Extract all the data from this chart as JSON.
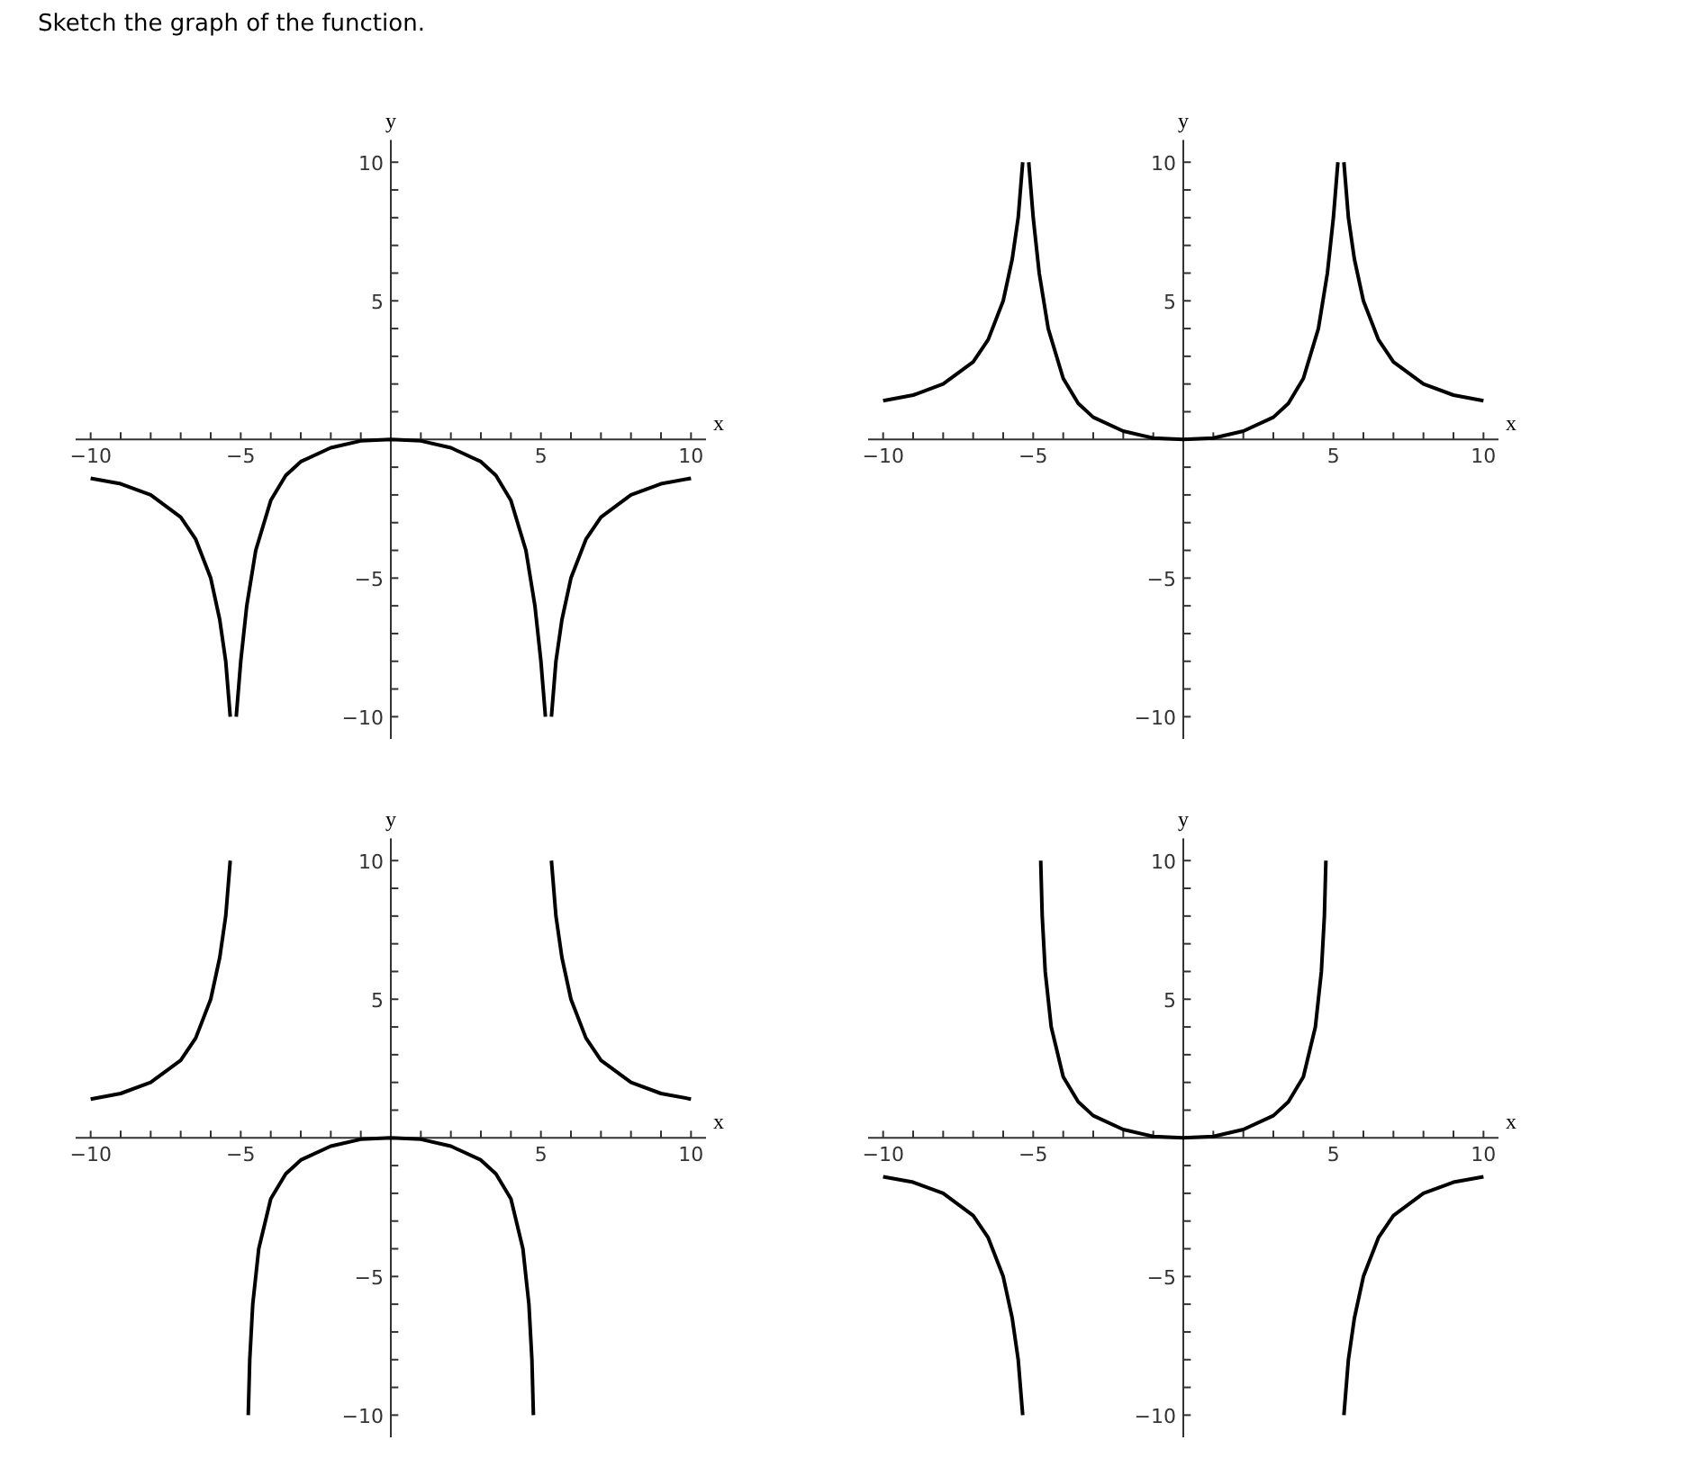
{
  "chart_data": [
    {
      "type": "line",
      "title": "Sketch the graph of the function.",
      "xlabel": "x",
      "ylabel": "y",
      "xlim": [
        -10.5,
        10.5
      ],
      "ylim": [
        -10.8,
        10.8
      ],
      "xticks": [
        {
          "value": -10,
          "label": "−10"
        },
        {
          "value": -9,
          "label": null
        },
        {
          "value": -8,
          "label": null
        },
        {
          "value": -7,
          "label": null
        },
        {
          "value": -6,
          "label": null
        },
        {
          "value": -5,
          "label": "−5"
        },
        {
          "value": -4,
          "label": null
        },
        {
          "value": -3,
          "label": null
        },
        {
          "value": -2,
          "label": null
        },
        {
          "value": -1,
          "label": null
        },
        {
          "value": 1,
          "label": null
        },
        {
          "value": 2,
          "label": null
        },
        {
          "value": 3,
          "label": null
        },
        {
          "value": 4,
          "label": null
        },
        5,
        {
          "value": 6,
          "label": null
        },
        {
          "value": 7,
          "label": null
        },
        {
          "value": 8,
          "label": null
        },
        {
          "value": 9,
          "label": null
        },
        10
      ],
      "yticks": [
        {
          "value": -10,
          "label": "−10"
        },
        {
          "value": -9,
          "label": null
        },
        {
          "value": -8,
          "label": null
        },
        {
          "value": -7,
          "label": null
        },
        {
          "value": -6,
          "label": null
        },
        {
          "value": -5,
          "label": "−5"
        },
        {
          "value": -4,
          "label": null
        },
        {
          "value": -3,
          "label": null
        },
        {
          "value": -2,
          "label": null
        },
        {
          "value": -1,
          "label": null
        },
        {
          "value": 1,
          "label": null
        },
        {
          "value": 2,
          "label": null
        },
        {
          "value": 3,
          "label": null
        },
        {
          "value": 4,
          "label": null
        },
        5,
        {
          "value": 6,
          "label": null
        },
        {
          "value": 7,
          "label": null
        },
        {
          "value": 8,
          "label": null
        },
        {
          "value": 9,
          "label": null
        },
        10
      ],
      "series": [
        {
          "color": "#000000",
          "x": [
            -10,
            -9,
            -8,
            -7,
            -6.5,
            -6,
            -5.7,
            -5.5,
            -5.35
          ],
          "values": [
            -1.4,
            -1.6,
            -2,
            -2.8,
            -3.6,
            -5,
            -6.5,
            -8,
            -10
          ]
        },
        {
          "color": "#000000",
          "x": [
            -5.15,
            -5,
            -4.8,
            -4.5,
            -4,
            -3.5,
            -3,
            -2,
            -1,
            0,
            1,
            2,
            3,
            3.5,
            4,
            4.5,
            4.8,
            5,
            5.15
          ],
          "values": [
            -10,
            -8,
            -6,
            -4,
            -2.2,
            -1.3,
            -0.8,
            -0.3,
            -0.05,
            0,
            -0.05,
            -0.3,
            -0.8,
            -1.3,
            -2.2,
            -4,
            -6,
            -8,
            -10
          ]
        },
        {
          "color": "#000000",
          "x": [
            5.35,
            5.5,
            5.7,
            6,
            6.5,
            7,
            8,
            9,
            10
          ],
          "values": [
            -10,
            -8,
            -6.5,
            -5,
            -3.6,
            -2.8,
            -2,
            -1.6,
            -1.4
          ]
        }
      ]
    },
    {
      "type": "line",
      "xlabel": "x",
      "ylabel": "y",
      "xlim": [
        -10.5,
        10.5
      ],
      "ylim": [
        -10.8,
        10.8
      ],
      "xticks": [
        {
          "value": -10,
          "label": "−10"
        },
        {
          "value": -9,
          "label": null
        },
        {
          "value": -8,
          "label": null
        },
        {
          "value": -7,
          "label": null
        },
        {
          "value": -6,
          "label": null
        },
        {
          "value": -5,
          "label": "−5"
        },
        {
          "value": -4,
          "label": null
        },
        {
          "value": -3,
          "label": null
        },
        {
          "value": -2,
          "label": null
        },
        {
          "value": -1,
          "label": null
        },
        {
          "value": 1,
          "label": null
        },
        {
          "value": 2,
          "label": null
        },
        {
          "value": 3,
          "label": null
        },
        {
          "value": 4,
          "label": null
        },
        5,
        {
          "value": 6,
          "label": null
        },
        {
          "value": 7,
          "label": null
        },
        {
          "value": 8,
          "label": null
        },
        {
          "value": 9,
          "label": null
        },
        10
      ],
      "yticks": [
        {
          "value": -10,
          "label": "−10"
        },
        {
          "value": -9,
          "label": null
        },
        {
          "value": -8,
          "label": null
        },
        {
          "value": -7,
          "label": null
        },
        {
          "value": -6,
          "label": null
        },
        {
          "value": -5,
          "label": "−5"
        },
        {
          "value": -4,
          "label": null
        },
        {
          "value": -3,
          "label": null
        },
        {
          "value": -2,
          "label": null
        },
        {
          "value": -1,
          "label": null
        },
        {
          "value": 1,
          "label": null
        },
        {
          "value": 2,
          "label": null
        },
        {
          "value": 3,
          "label": null
        },
        {
          "value": 4,
          "label": null
        },
        5,
        {
          "value": 6,
          "label": null
        },
        {
          "value": 7,
          "label": null
        },
        {
          "value": 8,
          "label": null
        },
        {
          "value": 9,
          "label": null
        },
        10
      ],
      "series": [
        {
          "color": "#000000",
          "x": [
            -10,
            -9,
            -8,
            -7,
            -6.5,
            -6,
            -5.7,
            -5.5,
            -5.35
          ],
          "values": [
            1.4,
            1.6,
            2,
            2.8,
            3.6,
            5,
            6.5,
            8,
            10
          ]
        },
        {
          "color": "#000000",
          "x": [
            -5.15,
            -5,
            -4.8,
            -4.5,
            -4,
            -3.5,
            -3,
            -2,
            -1,
            0,
            1,
            2,
            3,
            3.5,
            4,
            4.5,
            4.8,
            5,
            5.15
          ],
          "values": [
            10,
            8,
            6,
            4,
            2.2,
            1.3,
            0.8,
            0.3,
            0.05,
            0,
            0.05,
            0.3,
            0.8,
            1.3,
            2.2,
            4,
            6,
            8,
            10
          ]
        },
        {
          "color": "#000000",
          "x": [
            5.35,
            5.5,
            5.7,
            6,
            6.5,
            7,
            8,
            9,
            10
          ],
          "values": [
            10,
            8,
            6.5,
            5,
            3.6,
            2.8,
            2,
            1.6,
            1.4
          ]
        }
      ]
    },
    {
      "type": "line",
      "xlabel": "x",
      "ylabel": "y",
      "xlim": [
        -10.5,
        10.5
      ],
      "ylim": [
        -10.8,
        10.8
      ],
      "xticks": [
        {
          "value": -10,
          "label": "−10"
        },
        {
          "value": -9,
          "label": null
        },
        {
          "value": -8,
          "label": null
        },
        {
          "value": -7,
          "label": null
        },
        {
          "value": -6,
          "label": null
        },
        {
          "value": -5,
          "label": "−5"
        },
        {
          "value": -4,
          "label": null
        },
        {
          "value": -3,
          "label": null
        },
        {
          "value": -2,
          "label": null
        },
        {
          "value": -1,
          "label": null
        },
        {
          "value": 1,
          "label": null
        },
        {
          "value": 2,
          "label": null
        },
        {
          "value": 3,
          "label": null
        },
        {
          "value": 4,
          "label": null
        },
        5,
        {
          "value": 6,
          "label": null
        },
        {
          "value": 7,
          "label": null
        },
        {
          "value": 8,
          "label": null
        },
        {
          "value": 9,
          "label": null
        },
        10
      ],
      "yticks": [
        {
          "value": -10,
          "label": "−10"
        },
        {
          "value": -9,
          "label": null
        },
        {
          "value": -8,
          "label": null
        },
        {
          "value": -7,
          "label": null
        },
        {
          "value": -6,
          "label": null
        },
        {
          "value": -5,
          "label": "−5"
        },
        {
          "value": -4,
          "label": null
        },
        {
          "value": -3,
          "label": null
        },
        {
          "value": -2,
          "label": null
        },
        {
          "value": -1,
          "label": null
        },
        {
          "value": 1,
          "label": null
        },
        {
          "value": 2,
          "label": null
        },
        {
          "value": 3,
          "label": null
        },
        {
          "value": 4,
          "label": null
        },
        5,
        {
          "value": 6,
          "label": null
        },
        {
          "value": 7,
          "label": null
        },
        {
          "value": 8,
          "label": null
        },
        {
          "value": 9,
          "label": null
        },
        10
      ],
      "series": [
        {
          "color": "#000000",
          "x": [
            -10,
            -9,
            -8,
            -7,
            -6.5,
            -6,
            -5.7,
            -5.5,
            -5.35
          ],
          "values": [
            1.4,
            1.6,
            2,
            2.8,
            3.6,
            5,
            6.5,
            8,
            10
          ]
        },
        {
          "color": "#000000",
          "x": [
            -4.75,
            -4.7,
            -4.6,
            -4.4,
            -4,
            -3.5,
            -3,
            -2,
            -1,
            0,
            1,
            2,
            3,
            3.5,
            4,
            4.4,
            4.6,
            4.7,
            4.75
          ],
          "values": [
            -10,
            -8,
            -6,
            -4,
            -2.2,
            -1.3,
            -0.8,
            -0.3,
            -0.05,
            0,
            -0.05,
            -0.3,
            -0.8,
            -1.3,
            -2.2,
            -4,
            -6,
            -8,
            -10
          ]
        },
        {
          "color": "#000000",
          "x": [
            5.35,
            5.5,
            5.7,
            6,
            6.5,
            7,
            8,
            9,
            10
          ],
          "values": [
            10,
            8,
            6.5,
            5,
            3.6,
            2.8,
            2,
            1.6,
            1.4
          ]
        }
      ]
    },
    {
      "type": "line",
      "xlabel": "x",
      "ylabel": "y",
      "xlim": [
        -10.5,
        10.5
      ],
      "ylim": [
        -10.8,
        10.8
      ],
      "xticks": [
        {
          "value": -10,
          "label": "−10"
        },
        {
          "value": -9,
          "label": null
        },
        {
          "value": -8,
          "label": null
        },
        {
          "value": -7,
          "label": null
        },
        {
          "value": -6,
          "label": null
        },
        {
          "value": -5,
          "label": "−5"
        },
        {
          "value": -4,
          "label": null
        },
        {
          "value": -3,
          "label": null
        },
        {
          "value": -2,
          "label": null
        },
        {
          "value": -1,
          "label": null
        },
        {
          "value": 1,
          "label": null
        },
        {
          "value": 2,
          "label": null
        },
        {
          "value": 3,
          "label": null
        },
        {
          "value": 4,
          "label": null
        },
        5,
        {
          "value": 6,
          "label": null
        },
        {
          "value": 7,
          "label": null
        },
        {
          "value": 8,
          "label": null
        },
        {
          "value": 9,
          "label": null
        },
        10
      ],
      "yticks": [
        {
          "value": -10,
          "label": "−10"
        },
        {
          "value": -9,
          "label": null
        },
        {
          "value": -8,
          "label": null
        },
        {
          "value": -7,
          "label": null
        },
        {
          "value": -6,
          "label": null
        },
        {
          "value": -5,
          "label": "−5"
        },
        {
          "value": -4,
          "label": null
        },
        {
          "value": -3,
          "label": null
        },
        {
          "value": -2,
          "label": null
        },
        {
          "value": -1,
          "label": null
        },
        {
          "value": 1,
          "label": null
        },
        {
          "value": 2,
          "label": null
        },
        {
          "value": 3,
          "label": null
        },
        {
          "value": 4,
          "label": null
        },
        5,
        {
          "value": 6,
          "label": null
        },
        {
          "value": 7,
          "label": null
        },
        {
          "value": 8,
          "label": null
        },
        {
          "value": 9,
          "label": null
        },
        10
      ],
      "series": [
        {
          "color": "#000000",
          "x": [
            -10,
            -9,
            -8,
            -7,
            -6.5,
            -6,
            -5.7,
            -5.5,
            -5.35
          ],
          "values": [
            -1.4,
            -1.6,
            -2,
            -2.8,
            -3.6,
            -5,
            -6.5,
            -8,
            -10
          ]
        },
        {
          "color": "#000000",
          "x": [
            -4.75,
            -4.7,
            -4.6,
            -4.4,
            -4,
            -3.5,
            -3,
            -2,
            -1,
            0,
            1,
            2,
            3,
            3.5,
            4,
            4.4,
            4.6,
            4.7,
            4.75
          ],
          "values": [
            10,
            8,
            6,
            4,
            2.2,
            1.3,
            0.8,
            0.3,
            0.05,
            0,
            0.05,
            0.3,
            0.8,
            1.3,
            2.2,
            4,
            6,
            8,
            10
          ]
        },
        {
          "color": "#000000",
          "x": [
            5.35,
            5.5,
            5.7,
            6,
            6.5,
            7,
            8,
            9,
            10
          ],
          "values": [
            -10,
            -8,
            -6.5,
            -5,
            -3.6,
            -2.8,
            -2,
            -1.6,
            -1.4
          ]
        }
      ]
    }
  ]
}
